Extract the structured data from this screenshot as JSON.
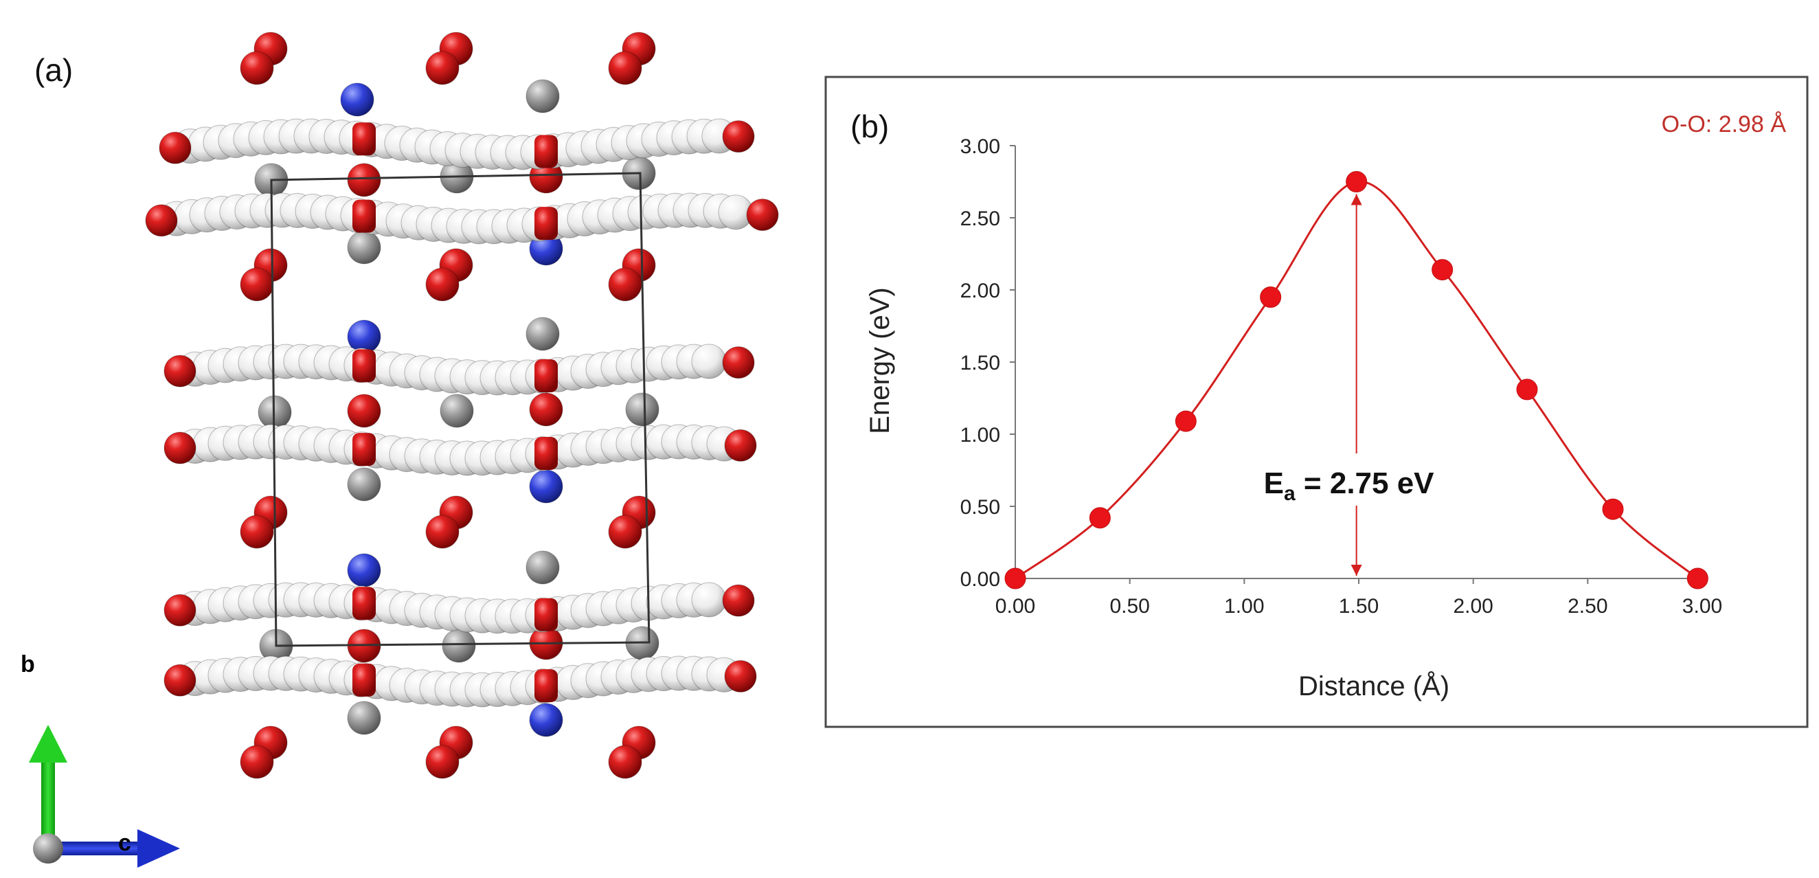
{
  "panel_a": {
    "label": "(a)",
    "axes": {
      "b_label": "b",
      "c_label": "c"
    },
    "colors": {
      "oxygen": "#d21f1f",
      "white_atom": "#f2f2f2",
      "gray_atom": "#9a9a9a",
      "blue_atom": "#2e3fd0",
      "b_axis": "#1fc41f",
      "c_axis": "#1b2fc8"
    }
  },
  "chart_data": {
    "type": "line",
    "panel_label": "(b)",
    "annotation_top_right": "O-O: 2.98 Å",
    "barrier_label_main": "E",
    "barrier_label_sub": "a",
    "barrier_label_rest": " = 2.75 eV",
    "barrier_x": 1.49,
    "xlabel": "Distance (Å)",
    "ylabel": "Energy (eV)",
    "xlim": [
      0,
      3.0
    ],
    "ylim": [
      0,
      3.0
    ],
    "xticks": [
      "0.00",
      "0.50",
      "1.00",
      "1.50",
      "2.00",
      "2.50",
      "3.00"
    ],
    "yticks": [
      "0.00",
      "0.50",
      "1.00",
      "1.50",
      "2.00",
      "2.50",
      "3.00"
    ],
    "series": [
      {
        "x": [
          0.0,
          0.37,
          0.745,
          1.115,
          1.49,
          1.865,
          2.235,
          2.61,
          2.98
        ],
        "y": [
          0.0,
          0.42,
          1.09,
          1.95,
          2.75,
          2.14,
          1.31,
          0.48,
          0.0
        ]
      }
    ],
    "color": "#d41f1f",
    "grid": false,
    "legend": "none"
  }
}
